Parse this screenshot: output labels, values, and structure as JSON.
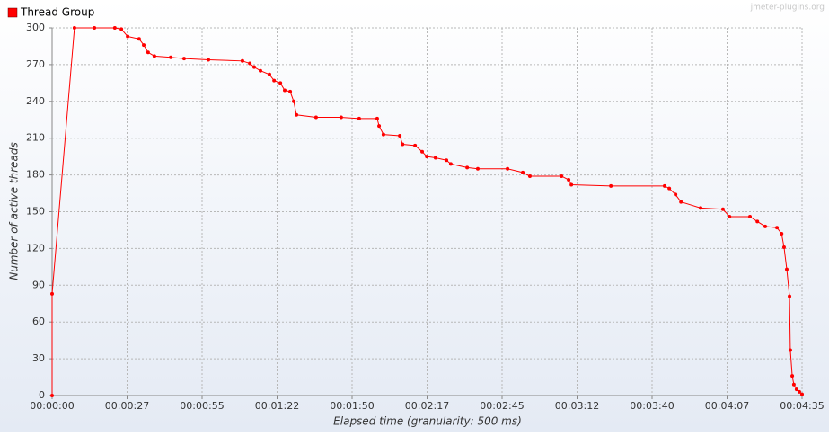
{
  "chart_data": {
    "type": "line",
    "watermark": "jmeter-plugins.org",
    "x_label": "Elapsed time (granularity: 500 ms)",
    "y_label": "Number of active threads",
    "xlim": [
      0,
      275
    ],
    "ylim": [
      0,
      300
    ],
    "xticks": [
      {
        "value": 0,
        "label": "00:00:00"
      },
      {
        "value": 27.5,
        "label": "00:00:27"
      },
      {
        "value": 55,
        "label": "00:00:55"
      },
      {
        "value": 82.5,
        "label": "00:01:22"
      },
      {
        "value": 110,
        "label": "00:01:50"
      },
      {
        "value": 137.5,
        "label": "00:02:17"
      },
      {
        "value": 165,
        "label": "00:02:45"
      },
      {
        "value": 192.5,
        "label": "00:03:12"
      },
      {
        "value": 220,
        "label": "00:03:40"
      },
      {
        "value": 247.5,
        "label": "00:04:07"
      },
      {
        "value": 275,
        "label": "00:04:35"
      }
    ],
    "yticks": [
      0,
      30,
      60,
      90,
      120,
      150,
      180,
      210,
      240,
      270,
      300
    ],
    "grid": true,
    "legend": "top-left",
    "x": [
      0,
      0,
      8.2,
      15.5,
      23,
      25.4,
      27.7,
      31.9,
      33.6,
      35.2,
      37.5,
      43.5,
      48.4,
      57.3,
      69.8,
      72.5,
      74.1,
      76.4,
      79.7,
      81.4,
      83.7,
      85.3,
      87.3,
      88.6,
      89.6,
      96.8,
      106,
      112.6,
      119.2,
      119.9,
      121.5,
      127.5,
      128.5,
      133.1,
      135.7,
      137.4,
      140.6,
      144.6,
      146.2,
      152.2,
      156.1,
      167,
      172.6,
      175.2,
      186.8,
      189.4,
      190.4,
      204.9,
      224.6,
      226.3,
      228.6,
      230.6,
      237.8,
      246,
      248.4,
      255.9,
      258.6,
      261.5,
      265.8,
      267.5,
      268.4,
      269.4,
      270.4,
      270.7,
      271.4,
      272,
      273,
      274,
      275
    ],
    "series": [
      {
        "name": "Thread Group",
        "color": "#ff0000",
        "values": [
          0,
          83,
          300,
          300,
          300,
          299,
          293,
          291,
          286,
          280,
          277,
          276,
          275,
          274,
          273,
          271,
          268,
          265,
          262,
          257,
          255,
          249,
          248,
          240,
          229,
          227,
          227,
          226,
          226,
          220,
          213,
          212,
          205,
          204,
          199,
          195,
          194,
          192,
          189,
          186,
          185,
          185,
          182,
          179,
          179,
          176,
          172,
          171,
          171,
          169,
          164,
          158,
          153,
          152,
          146,
          146,
          142,
          138,
          137,
          132,
          121,
          103,
          81,
          37,
          16,
          9,
          5,
          3,
          1
        ]
      }
    ]
  }
}
